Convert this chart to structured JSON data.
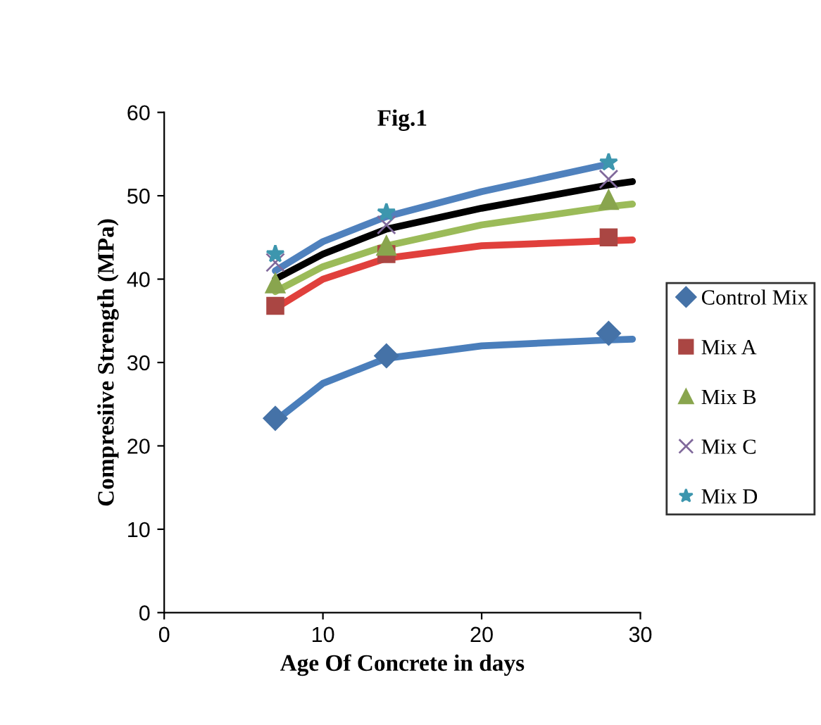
{
  "chart_data": {
    "type": "scatter",
    "title": "Fig.1",
    "xlabel": "Age Of Concrete in days",
    "ylabel": "Compresiive Strength (MPa)",
    "xlim": [
      0,
      30
    ],
    "xticks": [
      0,
      10,
      20,
      30
    ],
    "ylim": [
      0,
      60
    ],
    "yticks": [
      0,
      10,
      20,
      30,
      40,
      50,
      60
    ],
    "grid": false,
    "legend": "right",
    "series": [
      {
        "type": "line",
        "color": "#4a7ebb",
        "x": [
          7,
          10,
          14,
          20,
          28,
          29.5
        ],
        "values": [
          23,
          27.5,
          30.5,
          32,
          32.7,
          32.8
        ]
      },
      {
        "type": "line",
        "color": "#e0403c",
        "x": [
          7,
          10,
          14,
          20,
          28,
          29.5
        ],
        "values": [
          36.5,
          40,
          42.5,
          44,
          44.6,
          44.7
        ]
      },
      {
        "type": "line",
        "color": "#9bbb59",
        "x": [
          7,
          10,
          14,
          20,
          28,
          29.5
        ],
        "values": [
          38.5,
          41.5,
          44,
          46.5,
          48.7,
          49
        ]
      },
      {
        "type": "line",
        "color": "#000000",
        "x": [
          7,
          10,
          14,
          20,
          28,
          29.5
        ],
        "values": [
          40,
          43,
          46,
          48.5,
          51.3,
          51.7
        ]
      },
      {
        "type": "line",
        "color": "#4f81bd",
        "x": [
          7,
          10,
          14,
          20,
          28
        ],
        "values": [
          41,
          44.5,
          47.5,
          50.5,
          53.8
        ]
      },
      {
        "name": "Control Mix",
        "marker": "diamond",
        "color": "#4572a7",
        "x": [
          7,
          14,
          28
        ],
        "values": [
          23.3,
          30.8,
          33.5
        ]
      },
      {
        "name": "Mix A",
        "marker": "square",
        "color": "#aa4643",
        "x": [
          7,
          14,
          28
        ],
        "values": [
          36.8,
          43,
          45
        ]
      },
      {
        "name": "Mix B",
        "marker": "triangle",
        "color": "#89a54e",
        "x": [
          7,
          14,
          28
        ],
        "values": [
          39.5,
          44,
          49.5
        ]
      },
      {
        "name": "Mix C",
        "marker": "cross",
        "color": "#80699b",
        "x": [
          7,
          14,
          28
        ],
        "values": [
          42,
          46.5,
          52
        ]
      },
      {
        "name": "Mix D",
        "marker": "star",
        "color": "#3d96ae",
        "x": [
          7,
          14,
          28
        ],
        "values": [
          43,
          48,
          54
        ]
      }
    ]
  }
}
